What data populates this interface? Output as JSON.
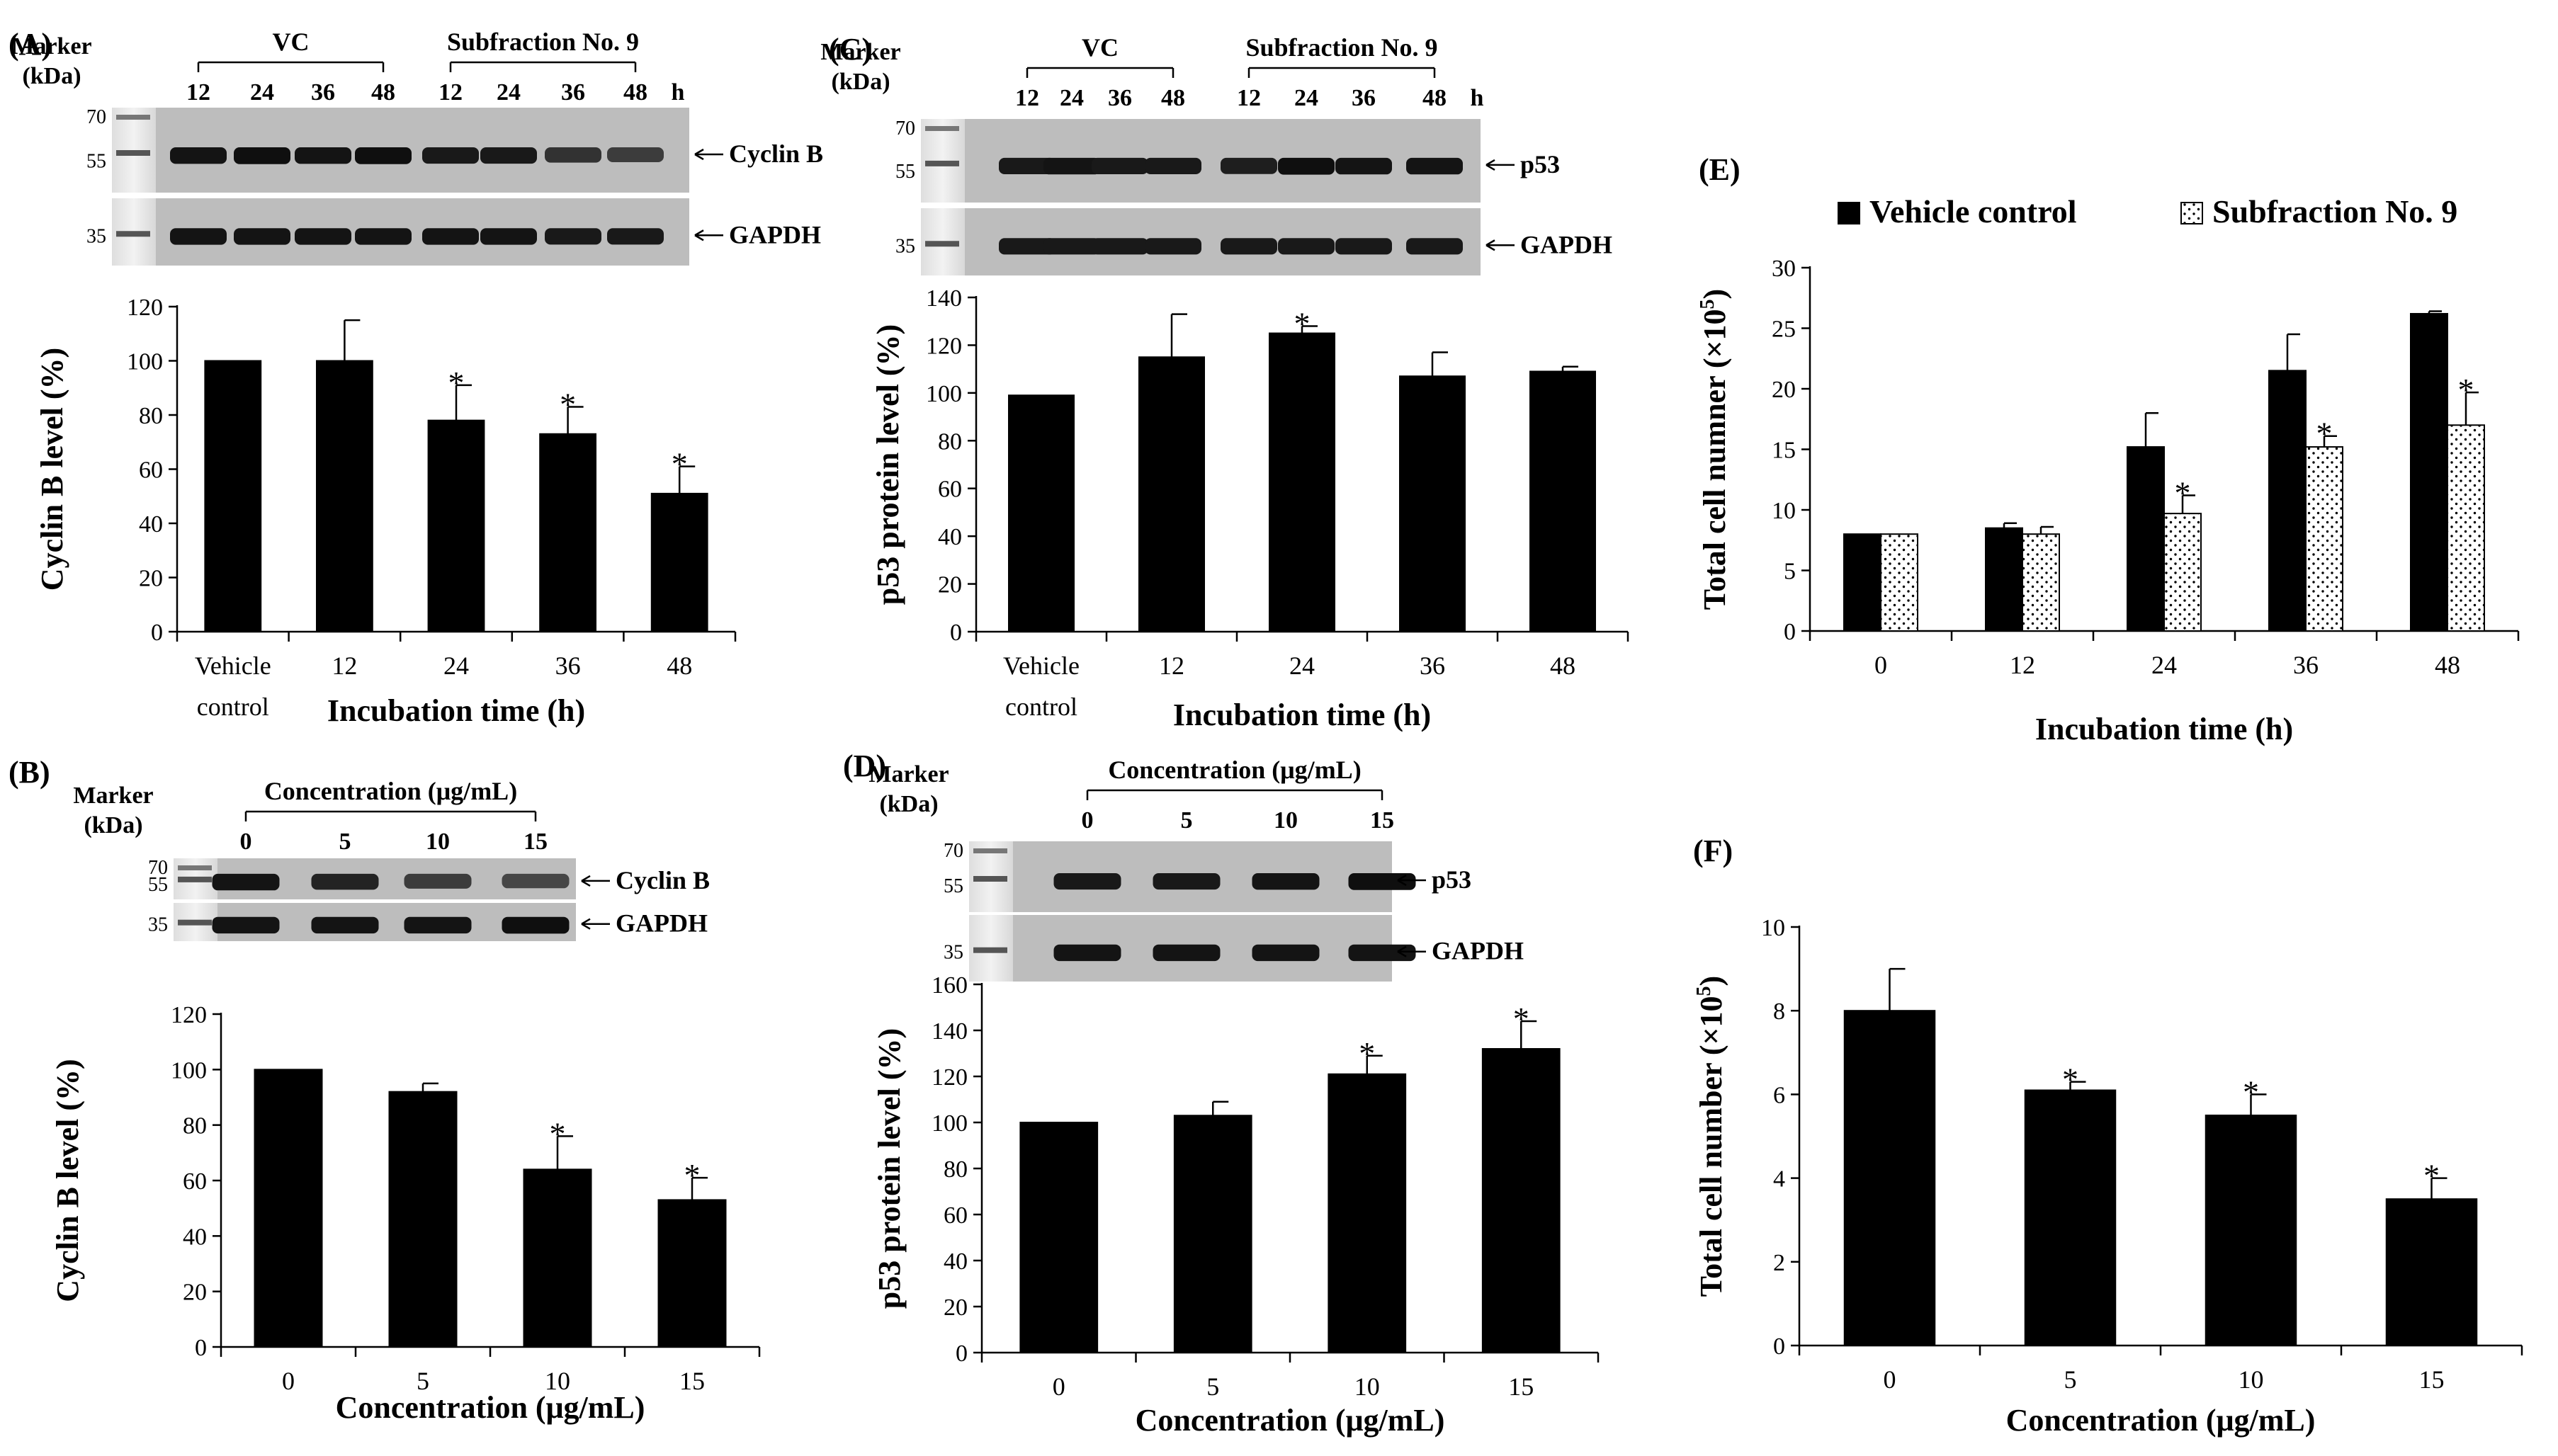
{
  "chart_data": [
    {
      "panel": "(A)",
      "type": "bar",
      "blot": {
        "marker_title": [
          "Marker",
          "(kDa)"
        ],
        "marker_ticks": [
          "70",
          "55",
          "35"
        ],
        "groups": [
          {
            "label": "VC",
            "lanes": [
              "12",
              "24",
              "36",
              "48"
            ]
          },
          {
            "label": "Subfraction No. 9",
            "lanes": [
              "12",
              "24",
              "36",
              "48"
            ]
          }
        ],
        "unit": "h",
        "strips": [
          {
            "label": "Cyclin B",
            "intensity": [
              0.9,
              0.95,
              0.9,
              0.95,
              0.85,
              0.85,
              0.6,
              0.5
            ]
          },
          {
            "label": "GAPDH",
            "intensity": [
              0.9,
              0.9,
              0.9,
              0.9,
              0.9,
              0.9,
              0.85,
              0.85
            ]
          }
        ]
      },
      "categories": [
        [
          "Vehicle",
          "control"
        ],
        [
          "12"
        ],
        [
          "24"
        ],
        [
          "36"
        ],
        [
          "48"
        ]
      ],
      "values": [
        100,
        100,
        78,
        73,
        51
      ],
      "errors": [
        0,
        15,
        13,
        10,
        10
      ],
      "significant": [
        false,
        false,
        true,
        true,
        true
      ],
      "xlabel": "Incubation time (h)",
      "ylabel": "Cyclin B  level (%)",
      "ylim": [
        0,
        120
      ],
      "yticks": [
        "0",
        "20",
        "40",
        "60",
        "80",
        "100",
        "120"
      ],
      "star": "*"
    },
    {
      "panel": "(B)",
      "type": "bar",
      "blot": {
        "marker_title": [
          "Marker",
          "(kDa)"
        ],
        "marker_ticks": [
          "70",
          "55",
          "35"
        ],
        "groups": [
          {
            "label": "Concentration (μg/mL)",
            "lanes": [
              "0",
              "5",
              "10",
              "15"
            ]
          }
        ],
        "unit": "",
        "strips": [
          {
            "label": "Cyclin B",
            "intensity": [
              0.9,
              0.75,
              0.5,
              0.4
            ]
          },
          {
            "label": "GAPDH",
            "intensity": [
              0.9,
              0.9,
              0.9,
              0.95
            ]
          }
        ]
      },
      "categories": [
        [
          "0"
        ],
        [
          "5"
        ],
        [
          "10"
        ],
        [
          "15"
        ]
      ],
      "values": [
        100,
        92,
        64,
        53
      ],
      "errors": [
        0,
        3,
        12,
        8
      ],
      "significant": [
        false,
        false,
        true,
        true
      ],
      "xlabel": "Concentration (μg/mL)",
      "ylabel": "Cyclin B level (%)",
      "ylim": [
        0,
        120
      ],
      "yticks": [
        "0",
        "20",
        "40",
        "60",
        "80",
        "100",
        "120"
      ],
      "star": "*"
    },
    {
      "panel": "(C)",
      "type": "bar",
      "blot": {
        "marker_title": [
          "Marker",
          "(kDa)"
        ],
        "marker_ticks": [
          "70",
          "55",
          "35"
        ],
        "groups": [
          {
            "label": "VC",
            "lanes": [
              "12",
              "24",
              "36",
              "48"
            ]
          },
          {
            "label": "Subfraction No. 9",
            "lanes": [
              "12",
              "24",
              "36",
              "48"
            ]
          }
        ],
        "unit": "h",
        "strips": [
          {
            "label": "p53",
            "intensity": [
              0.85,
              0.9,
              0.85,
              0.85,
              0.8,
              0.95,
              0.9,
              0.9
            ]
          },
          {
            "label": "GAPDH",
            "intensity": [
              0.85,
              0.85,
              0.85,
              0.85,
              0.85,
              0.85,
              0.85,
              0.85
            ]
          }
        ]
      },
      "categories": [
        [
          "Vehicle",
          "control"
        ],
        [
          "12"
        ],
        [
          "24"
        ],
        [
          "36"
        ],
        [
          "48"
        ]
      ],
      "values": [
        99,
        115,
        125,
        107,
        109
      ],
      "errors": [
        0,
        18,
        3,
        10,
        2
      ],
      "significant": [
        false,
        false,
        true,
        false,
        false
      ],
      "xlabel": "Incubation time (h)",
      "ylabel": "p53 protein level (%)",
      "ylim": [
        0,
        140
      ],
      "yticks": [
        "0",
        "20",
        "40",
        "60",
        "80",
        "100",
        "120",
        "140"
      ],
      "star": "*"
    },
    {
      "panel": "(D)",
      "type": "bar",
      "blot": {
        "marker_title": [
          "Marker",
          "(kDa)"
        ],
        "marker_ticks": [
          "70",
          "55",
          "35"
        ],
        "groups": [
          {
            "label": "Concentration (μg/mL)",
            "lanes": [
              "0",
              "5",
              "10",
              "15"
            ]
          }
        ],
        "unit": "",
        "strips": [
          {
            "label": "p53",
            "intensity": [
              0.85,
              0.85,
              0.9,
              0.95
            ]
          },
          {
            "label": "GAPDH",
            "intensity": [
              0.9,
              0.9,
              0.9,
              0.9
            ]
          }
        ]
      },
      "categories": [
        [
          "0"
        ],
        [
          "5"
        ],
        [
          "10"
        ],
        [
          "15"
        ]
      ],
      "values": [
        100,
        103,
        121,
        132
      ],
      "errors": [
        0,
        6,
        8,
        12
      ],
      "significant": [
        false,
        false,
        true,
        true
      ],
      "xlabel": "Concentration (μg/mL)",
      "ylabel": "p53 protein level (%)",
      "ylim": [
        0,
        160
      ],
      "yticks": [
        "0",
        "20",
        "40",
        "60",
        "80",
        "100",
        "120",
        "140",
        "160"
      ],
      "star": "*"
    },
    {
      "panel": "(E)",
      "type": "bar",
      "legend": "top",
      "categories": [
        [
          "0"
        ],
        [
          "12"
        ],
        [
          "24"
        ],
        [
          "36"
        ],
        [
          "48"
        ]
      ],
      "series": [
        {
          "name": "Vehicle control",
          "fill": "solid",
          "values": [
            8,
            8.5,
            15.2,
            21.5,
            26.2
          ],
          "errors": [
            0,
            0.4,
            2.8,
            3.0,
            0.2
          ],
          "significant": [
            false,
            false,
            false,
            false,
            false
          ]
        },
        {
          "name": "Subfraction No. 9",
          "fill": "dotted",
          "values": [
            8,
            8,
            9.7,
            15.2,
            17
          ],
          "errors": [
            0,
            0.6,
            1.5,
            0.9,
            2.7
          ],
          "significant": [
            false,
            false,
            true,
            true,
            true
          ]
        }
      ],
      "xlabel": "Incubation time (h)",
      "ylabel": "Total cell numner (×10",
      "ylabel_sup": "5",
      "ylabel_end": ")",
      "ylim": [
        0,
        30
      ],
      "yticks": [
        "0",
        "5",
        "10",
        "15",
        "20",
        "25",
        "30"
      ],
      "star": "*"
    },
    {
      "panel": "(F)",
      "type": "bar",
      "categories": [
        [
          "0"
        ],
        [
          "5"
        ],
        [
          "10"
        ],
        [
          "15"
        ]
      ],
      "values": [
        8,
        6.1,
        5.5,
        3.5
      ],
      "errors": [
        1,
        0.2,
        0.5,
        0.5
      ],
      "significant": [
        false,
        true,
        true,
        true
      ],
      "xlabel": "Concentration (μg/mL)",
      "ylabel": "Total cell number (×10",
      "ylabel_sup": "5",
      "ylabel_end": ")",
      "ylim": [
        0,
        10
      ],
      "yticks": [
        "0",
        "2",
        "4",
        "6",
        "8",
        "10"
      ],
      "star": "*"
    }
  ]
}
